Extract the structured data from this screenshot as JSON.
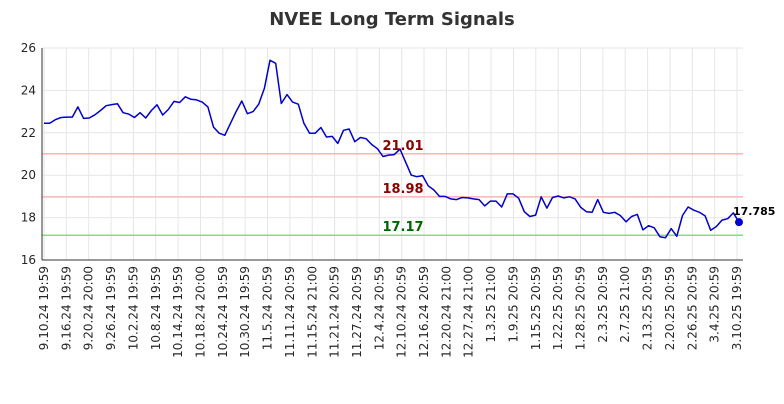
{
  "chart_data": {
    "type": "line",
    "title": "NVEE Long Term Signals",
    "xlabel": "",
    "ylabel": "",
    "ylim": [
      16,
      26
    ],
    "yticks": [
      16,
      18,
      20,
      22,
      24,
      26
    ],
    "grid": true,
    "legend": "none",
    "x_tick_labels": [
      "9.10.24 19:59",
      "9.16.24 19:59",
      "9.20.24 20:00",
      "9.26.24 19:59",
      "10.2.24 19:59",
      "10.8.24 19:59",
      "10.14.24 19:59",
      "10.18.24 20:00",
      "10.24.24 19:59",
      "10.30.24 19:59",
      "11.5.24 20:59",
      "11.11.24 20:59",
      "11.15.24 21:00",
      "11.21.24 20:59",
      "11.27.24 20:59",
      "12.4.24 20:59",
      "12.10.24 20:59",
      "12.16.24 20:59",
      "12.20.24 21:00",
      "12.27.24 21:00",
      "1.3.25 21:00",
      "1.9.25 20:59",
      "1.15.25 20:59",
      "1.22.25 20:59",
      "1.28.25 20:59",
      "2.3.25 20:59",
      "2.7.25 21:00",
      "2.13.25 20:59",
      "2.20.25 20:59",
      "2.26.25 20:59",
      "3.4.25 20:59",
      "3.10.25 19:59"
    ],
    "series": [
      {
        "color": "#0000cc",
        "values": [
          22.45,
          22.45,
          22.62,
          22.72,
          22.74,
          22.74,
          23.22,
          22.68,
          22.7,
          22.85,
          23.05,
          23.28,
          23.33,
          23.37,
          22.95,
          22.88,
          22.72,
          22.95,
          22.7,
          23.05,
          23.32,
          22.84,
          23.1,
          23.48,
          23.43,
          23.7,
          23.58,
          23.55,
          23.45,
          23.22,
          22.27,
          21.98,
          21.88,
          22.45,
          23.0,
          23.5,
          22.9,
          23.0,
          23.35,
          24.1,
          25.42,
          25.28,
          23.38,
          23.8,
          23.45,
          23.35,
          22.45,
          21.98,
          21.98,
          22.25,
          21.8,
          21.83,
          21.5,
          22.12,
          22.18,
          21.58,
          21.78,
          21.72,
          21.45,
          21.25,
          20.88,
          20.95,
          20.97,
          21.23,
          20.62,
          20.0,
          19.93,
          19.98,
          19.5,
          19.3,
          19.0,
          19.0,
          18.88,
          18.85,
          18.95,
          18.93,
          18.88,
          18.85,
          18.55,
          18.78,
          18.78,
          18.5,
          19.12,
          19.12,
          18.92,
          18.28,
          18.05,
          18.12,
          18.98,
          18.45,
          18.95,
          19.02,
          18.93,
          18.98,
          18.88,
          18.48,
          18.28,
          18.25,
          18.85,
          18.25,
          18.2,
          18.25,
          18.1,
          17.8,
          18.05,
          18.15,
          17.42,
          17.62,
          17.52,
          17.1,
          17.05,
          17.48,
          17.12,
          18.1,
          18.5,
          18.35,
          18.25,
          18.08,
          17.4,
          17.58,
          17.88,
          17.95,
          18.22,
          17.785
        ]
      }
    ],
    "reference_lines": [
      {
        "value": 21.01,
        "label": "21.01",
        "line_color": "#ffb3b3",
        "label_color": "#8b0000"
      },
      {
        "value": 18.98,
        "label": "18.98",
        "line_color": "#ffb3b3",
        "label_color": "#8b0000"
      },
      {
        "value": 17.17,
        "label": "17.17",
        "line_color": "#80e080",
        "label_color": "#006400"
      }
    ],
    "last_value": {
      "value": 17.785,
      "label": "17.785"
    }
  }
}
